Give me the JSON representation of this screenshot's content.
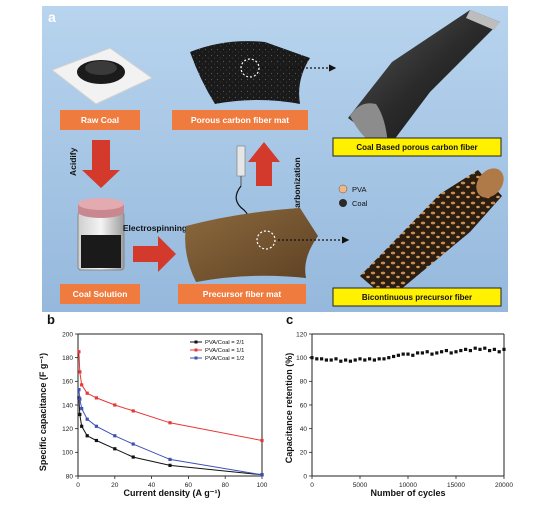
{
  "figure": {
    "panel_a": {
      "letter": "a",
      "labels": {
        "raw_coal": "Raw Coal",
        "porous_mat": "Porous carbon fiber mat",
        "coal_solution": "Coal Solution",
        "precursor_mat": "Precursor fiber mat",
        "acidify": "Acidify",
        "electrospinning": "Electrospinning",
        "carbonization": "Carbonization",
        "coal_based_fiber": "Coal Based porous carbon fiber",
        "bicontinuous_fiber": "Bicontinuous precursor fiber",
        "legend_pva": "PVA",
        "legend_coal": "Coal"
      },
      "colors": {
        "background": "#a9c8e6",
        "label": "#f07b3f",
        "arrow": "#d33a2c",
        "highlight": "#fff100"
      }
    },
    "panel_b": {
      "letter": "b"
    },
    "panel_c": {
      "letter": "c"
    }
  },
  "chart_data": [
    {
      "type": "line",
      "panel": "b",
      "xlabel": "Current density (A g⁻¹)",
      "ylabel": "Specific capacitance (F g⁻¹)",
      "xlim": [
        0,
        100
      ],
      "ylim": [
        80,
        200
      ],
      "xticks": [
        0,
        20,
        40,
        60,
        80,
        100
      ],
      "yticks": [
        80,
        100,
        120,
        140,
        160,
        180,
        200
      ],
      "legend_position": "top-right",
      "series": [
        {
          "name": "PVA/Coal = 2/1",
          "color": "#111111",
          "x": [
            0.5,
            1,
            2,
            5,
            10,
            20,
            30,
            50,
            100
          ],
          "y": [
            146,
            132,
            122,
            114,
            110,
            103,
            96,
            89,
            81
          ]
        },
        {
          "name": "PVA/Coal = 1/1",
          "color": "#e53935",
          "x": [
            0.5,
            1,
            2,
            5,
            10,
            20,
            30,
            50,
            100
          ],
          "y": [
            185,
            168,
            157,
            150,
            146,
            140,
            135,
            125,
            110
          ]
        },
        {
          "name": "PVA/Coal = 1/2",
          "color": "#3f51b5",
          "x": [
            0.5,
            1,
            2,
            5,
            10,
            20,
            30,
            50,
            100
          ],
          "y": [
            153,
            145,
            137,
            128,
            122,
            114,
            107,
            94,
            81
          ]
        }
      ]
    },
    {
      "type": "scatter",
      "panel": "c",
      "xlabel": "Number of cycles",
      "ylabel": "Capacitance retention (%)",
      "xlim": [
        0,
        20000
      ],
      "ylim": [
        0,
        120
      ],
      "xticks": [
        0,
        5000,
        10000,
        15000,
        20000
      ],
      "yticks": [
        0,
        20,
        40,
        60,
        80,
        100,
        120
      ],
      "series": [
        {
          "color": "#111111",
          "x": [
            0,
            500,
            1000,
            1500,
            2000,
            2500,
            3000,
            3500,
            4000,
            4500,
            5000,
            5500,
            6000,
            6500,
            7000,
            7500,
            8000,
            8500,
            9000,
            9500,
            10000,
            10500,
            11000,
            11500,
            12000,
            12500,
            13000,
            13500,
            14000,
            14500,
            15000,
            15500,
            16000,
            16500,
            17000,
            17500,
            18000,
            18500,
            19000,
            19500,
            20000
          ],
          "y": [
            100,
            99,
            99,
            98,
            98,
            99,
            97,
            98,
            97,
            98,
            99,
            98,
            99,
            98,
            99,
            99,
            100,
            101,
            102,
            103,
            103,
            102,
            104,
            104,
            105,
            103,
            104,
            105,
            106,
            104,
            105,
            106,
            107,
            106,
            108,
            107,
            108,
            106,
            107,
            105,
            107
          ]
        }
      ]
    }
  ]
}
